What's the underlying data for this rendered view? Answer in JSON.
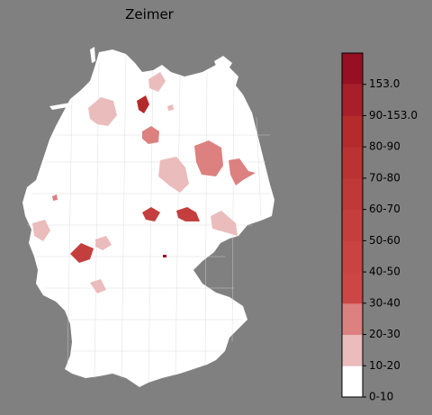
{
  "title": "Zeimer",
  "colors": {
    "background": "#808080",
    "land": "#ffffff",
    "district_border": "#d6d6d6"
  },
  "chart_data": {
    "type": "choropleth-map",
    "region": "Germany (districts)",
    "title": "Zeimer",
    "colorbar": {
      "orientation": "vertical",
      "max_label": "153.0",
      "classes": [
        {
          "label": "0-10",
          "color": "#ffffff"
        },
        {
          "label": "10-20",
          "color": "#ebbcbc"
        },
        {
          "label": "20-30",
          "color": "#dc8080"
        },
        {
          "label": "30-40",
          "color": "#cd4646"
        },
        {
          "label": "40-50",
          "color": "#c94343"
        },
        {
          "label": "50-60",
          "color": "#c53e3e"
        },
        {
          "label": "60-70",
          "color": "#c03838"
        },
        {
          "label": "70-80",
          "color": "#bb3232"
        },
        {
          "label": "80-90",
          "color": "#b52b2b"
        },
        {
          "label": "90-153.0",
          "color": "#a81e2a"
        }
      ],
      "top_color": "#960f22"
    },
    "highlighted_regions": [
      {
        "name": "district-ostfriesland-north",
        "class": "10-20"
      },
      {
        "name": "district-hamburg-area",
        "class": "10-20"
      },
      {
        "name": "district-luebeck-area",
        "class": "90-153.0"
      },
      {
        "name": "district-mecklenburg-small",
        "class": "30-40"
      },
      {
        "name": "district-hannover-area",
        "class": "30-40"
      },
      {
        "name": "district-altmark",
        "class": "10-20"
      },
      {
        "name": "district-brandenburg-west",
        "class": "30-40"
      },
      {
        "name": "district-brandenburg-south",
        "class": "30-40"
      },
      {
        "name": "district-harz",
        "class": "80-90"
      },
      {
        "name": "district-thuringia-east",
        "class": "80-90"
      },
      {
        "name": "district-saxony",
        "class": "10-20"
      },
      {
        "name": "district-ruhr",
        "class": "10-20"
      },
      {
        "name": "district-hessen-north",
        "class": "10-20"
      },
      {
        "name": "district-rhein-main",
        "class": "80-90"
      },
      {
        "name": "district-pfalz",
        "class": "10-20"
      },
      {
        "name": "district-nuremberg",
        "class": "90-153.0"
      }
    ]
  }
}
